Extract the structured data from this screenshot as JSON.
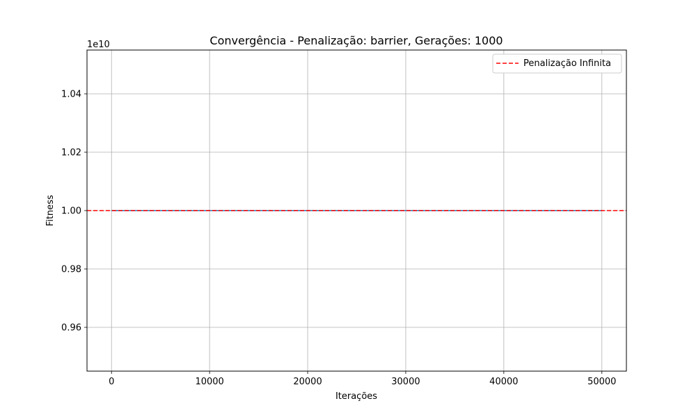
{
  "chart_data": {
    "type": "line",
    "title": "Convergência - Penalização: barrier, Gerações: 1000",
    "xlabel": "Iterações",
    "ylabel": "Fitness",
    "y_offset_label": "1e10",
    "xlim": [
      -2500,
      52500
    ],
    "ylim": [
      0.945,
      1.055
    ],
    "x_ticks": [
      0,
      10000,
      20000,
      30000,
      40000,
      50000
    ],
    "x_tick_labels": [
      "0",
      "10000",
      "20000",
      "30000",
      "40000",
      "50000"
    ],
    "y_ticks": [
      0.96,
      0.98,
      1.0,
      1.02,
      1.04
    ],
    "y_tick_labels": [
      "0.96",
      "0.98",
      "1.00",
      "1.02",
      "1.04"
    ],
    "grid": true,
    "legend_position": "top-right",
    "series": [
      {
        "x": [
          0,
          50000
        ],
        "y": [
          1.0,
          1.0
        ],
        "color": "#1f77b4"
      }
    ],
    "reference_line": {
      "name": "Penalização Infinita",
      "y": 1.0,
      "color": "#ff0000",
      "style": "dashed"
    }
  }
}
